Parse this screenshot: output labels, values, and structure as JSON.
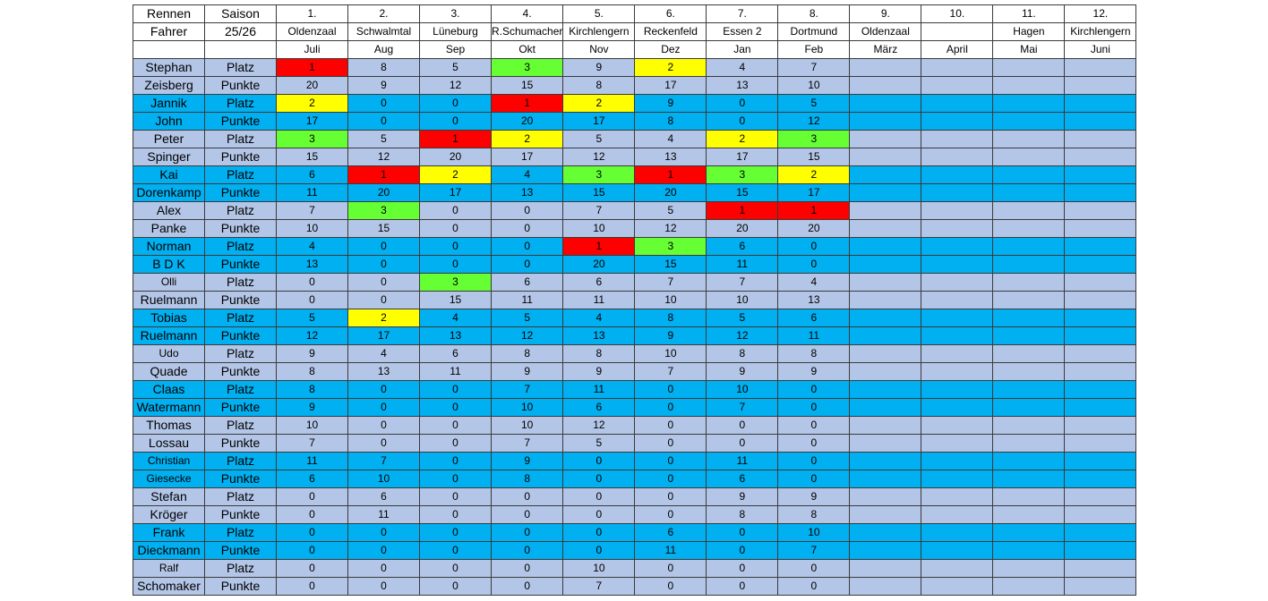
{
  "header": {
    "row1": [
      "Rennen",
      "Saison",
      "1.",
      "2.",
      "3.",
      "4.",
      "5.",
      "6.",
      "7.",
      "8.",
      "9.",
      "10.",
      "11.",
      "12."
    ],
    "row2": [
      "Fahrer",
      "25/26",
      "Oldenzaal",
      "Schwalmtal",
      "Lüneburg",
      "R.Schumacher",
      "Kirchlengern",
      "Reckenfeld",
      "Essen 2",
      "Dortmund",
      "Oldenzaal",
      "",
      "Hagen",
      "Kirchlengern"
    ],
    "row3": [
      "",
      "",
      "Juli",
      "Aug",
      "Sep",
      "Okt",
      "Nov",
      "Dez",
      "Jan",
      "Feb",
      "März",
      "April",
      "Mai",
      "Juni"
    ]
  },
  "highlight_colors": {
    "1": "#ff0000",
    "2": "#ffff00",
    "3": "#66ff33"
  },
  "band_colors": [
    "#b4c6e7",
    "#00b0f0"
  ],
  "drivers": [
    {
      "first": "Stephan",
      "last": "Zeisberg",
      "platz": [
        "1",
        "8",
        "5",
        "3",
        "9",
        "2",
        "4",
        "7",
        "",
        "",
        "",
        ""
      ],
      "punkte": [
        "20",
        "9",
        "12",
        "15",
        "8",
        "17",
        "13",
        "10",
        "",
        "",
        "",
        ""
      ],
      "hl": [
        "red",
        "",
        "",
        "green",
        "",
        "yellow",
        "",
        ""
      ]
    },
    {
      "first": "Jannik",
      "last": "John",
      "platz": [
        "2",
        "0",
        "0",
        "1",
        "2",
        "9",
        "0",
        "5",
        "",
        "",
        "",
        ""
      ],
      "punkte": [
        "17",
        "0",
        "0",
        "20",
        "17",
        "8",
        "0",
        "12",
        "",
        "",
        "",
        ""
      ],
      "hl": [
        "yellow",
        "",
        "",
        "red",
        "yellow",
        "",
        "",
        ""
      ]
    },
    {
      "first": "Peter",
      "last": "Spinger",
      "platz": [
        "3",
        "5",
        "1",
        "2",
        "5",
        "4",
        "2",
        "3",
        "",
        "",
        "",
        ""
      ],
      "punkte": [
        "15",
        "12",
        "20",
        "17",
        "12",
        "13",
        "17",
        "15",
        "",
        "",
        "",
        ""
      ],
      "hl": [
        "green",
        "",
        "red",
        "yellow",
        "",
        "",
        "yellow",
        "green"
      ]
    },
    {
      "first": "Kai",
      "last": "Dorenkamp",
      "platz": [
        "6",
        "1",
        "2",
        "4",
        "3",
        "1",
        "3",
        "2",
        "",
        "",
        "",
        ""
      ],
      "punkte": [
        "11",
        "20",
        "17",
        "13",
        "15",
        "20",
        "15",
        "17",
        "",
        "",
        "",
        ""
      ],
      "hl": [
        "",
        "red",
        "yellow",
        "",
        "green",
        "red",
        "green",
        "yellow"
      ]
    },
    {
      "first": "Alex",
      "last": "Panke",
      "platz": [
        "7",
        "3",
        "0",
        "0",
        "7",
        "5",
        "1",
        "1",
        "",
        "",
        "",
        ""
      ],
      "punkte": [
        "10",
        "15",
        "0",
        "0",
        "10",
        "12",
        "20",
        "20",
        "",
        "",
        "",
        ""
      ],
      "hl": [
        "",
        "green",
        "",
        "",
        "",
        "",
        "red",
        "red"
      ]
    },
    {
      "first": "Norman",
      "last": "B D K",
      "platz": [
        "4",
        "0",
        "0",
        "0",
        "1",
        "3",
        "6",
        "0",
        "",
        "",
        "",
        ""
      ],
      "punkte": [
        "13",
        "0",
        "0",
        "0",
        "20",
        "15",
        "11",
        "0",
        "",
        "",
        "",
        ""
      ],
      "hl": [
        "",
        "",
        "",
        "",
        "red",
        "green",
        "",
        ""
      ]
    },
    {
      "first": "Olli",
      "last": "Ruelmann",
      "platz": [
        "0",
        "0",
        "3",
        "6",
        "6",
        "7",
        "7",
        "4",
        "",
        "",
        "",
        ""
      ],
      "punkte": [
        "0",
        "0",
        "15",
        "11",
        "11",
        "10",
        "10",
        "13",
        "",
        "",
        "",
        ""
      ],
      "hl": [
        "",
        "",
        "green",
        "",
        "",
        "",
        "",
        ""
      ],
      "firstSmall": true
    },
    {
      "first": "Tobias",
      "last": "Ruelmann",
      "platz": [
        "5",
        "2",
        "4",
        "5",
        "4",
        "8",
        "5",
        "6",
        "",
        "",
        "",
        ""
      ],
      "punkte": [
        "12",
        "17",
        "13",
        "12",
        "13",
        "9",
        "12",
        "11",
        "",
        "",
        "",
        ""
      ],
      "hl": [
        "",
        "yellow",
        "",
        "",
        "",
        "",
        "",
        ""
      ]
    },
    {
      "first": "Udo",
      "last": "Quade",
      "platz": [
        "9",
        "4",
        "6",
        "8",
        "8",
        "10",
        "8",
        "8",
        "",
        "",
        "",
        ""
      ],
      "punkte": [
        "8",
        "13",
        "11",
        "9",
        "9",
        "7",
        "9",
        "9",
        "",
        "",
        "",
        ""
      ],
      "hl": [
        "",
        "",
        "",
        "",
        "",
        "",
        "",
        ""
      ],
      "firstSmall": true
    },
    {
      "first": "Claas",
      "last": "Watermann",
      "platz": [
        "8",
        "0",
        "0",
        "7",
        "11",
        "0",
        "10",
        "0",
        "",
        "",
        "",
        ""
      ],
      "punkte": [
        "9",
        "0",
        "0",
        "10",
        "6",
        "0",
        "7",
        "0",
        "",
        "",
        "",
        ""
      ],
      "hl": [
        "",
        "",
        "",
        "",
        "",
        "",
        "",
        ""
      ]
    },
    {
      "first": "Thomas",
      "last": "Lossau",
      "platz": [
        "10",
        "0",
        "0",
        "10",
        "12",
        "0",
        "0",
        "0",
        "",
        "",
        "",
        ""
      ],
      "punkte": [
        "7",
        "0",
        "0",
        "7",
        "5",
        "0",
        "0",
        "0",
        "",
        "",
        "",
        ""
      ],
      "hl": [
        "",
        "",
        "",
        "",
        "",
        "",
        "",
        ""
      ]
    },
    {
      "first": "Christian",
      "last": "Giesecke",
      "platz": [
        "11",
        "7",
        "0",
        "9",
        "0",
        "0",
        "11",
        "0",
        "",
        "",
        "",
        ""
      ],
      "punkte": [
        "6",
        "10",
        "0",
        "8",
        "0",
        "0",
        "6",
        "0",
        "",
        "",
        "",
        ""
      ],
      "hl": [
        "",
        "",
        "",
        "",
        "",
        "",
        "",
        ""
      ],
      "firstSmall": true,
      "lastSmall": true
    },
    {
      "first": "Stefan",
      "last": "Kröger",
      "platz": [
        "0",
        "6",
        "0",
        "0",
        "0",
        "0",
        "9",
        "9",
        "",
        "",
        "",
        ""
      ],
      "punkte": [
        "0",
        "11",
        "0",
        "0",
        "0",
        "0",
        "8",
        "8",
        "",
        "",
        "",
        ""
      ],
      "hl": [
        "",
        "",
        "",
        "",
        "",
        "",
        "",
        ""
      ]
    },
    {
      "first": "Frank",
      "last": "Dieckmann",
      "platz": [
        "0",
        "0",
        "0",
        "0",
        "0",
        "6",
        "0",
        "10",
        "",
        "",
        "",
        ""
      ],
      "punkte": [
        "0",
        "0",
        "0",
        "0",
        "0",
        "11",
        "0",
        "7",
        "",
        "",
        "",
        ""
      ],
      "hl": [
        "",
        "",
        "",
        "",
        "",
        "",
        "",
        ""
      ]
    },
    {
      "first": "Ralf",
      "last": "Schomaker",
      "platz": [
        "0",
        "0",
        "0",
        "0",
        "10",
        "0",
        "0",
        "0",
        "",
        "",
        "",
        ""
      ],
      "punkte": [
        "0",
        "0",
        "0",
        "0",
        "7",
        "0",
        "0",
        "0",
        "",
        "",
        "",
        ""
      ],
      "hl": [
        "",
        "",
        "",
        "",
        "",
        "",
        "",
        ""
      ],
      "firstSmall": true
    }
  ],
  "labels": {
    "platz": "Platz",
    "punkte": "Punkte"
  }
}
